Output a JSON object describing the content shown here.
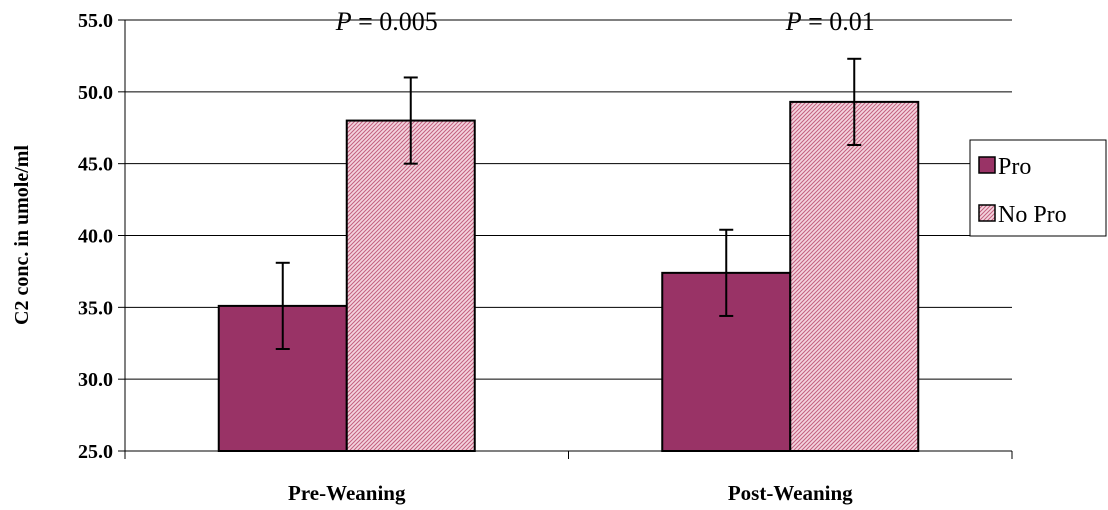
{
  "chart_data": {
    "type": "bar",
    "ylabel": "C2 conc. in umole/ml",
    "xlabel": "",
    "categories": [
      "Pre-Weaning",
      "Post-Weaning"
    ],
    "ylim": [
      25.0,
      55.0
    ],
    "yticks": [
      "25.0",
      "30.0",
      "35.0",
      "40.0",
      "45.0",
      "50.0",
      "55.0"
    ],
    "grid": true,
    "legend_position": "right",
    "series": [
      {
        "name": "Pro",
        "values": [
          35.1,
          37.4
        ],
        "errors": [
          3.0,
          3.0
        ],
        "color": "#993366",
        "pattern": "solid"
      },
      {
        "name": "No Pro",
        "values": [
          48.0,
          49.3
        ],
        "errors": [
          3.0,
          3.0
        ],
        "color": "#E8A0B8",
        "pattern": "hatched"
      }
    ],
    "annotations": [
      {
        "category": "Pre-Weaning",
        "italic": "P",
        "text": " = 0.005"
      },
      {
        "category": "Post-Weaning",
        "italic": "P",
        "text": " = 0.01"
      }
    ]
  }
}
